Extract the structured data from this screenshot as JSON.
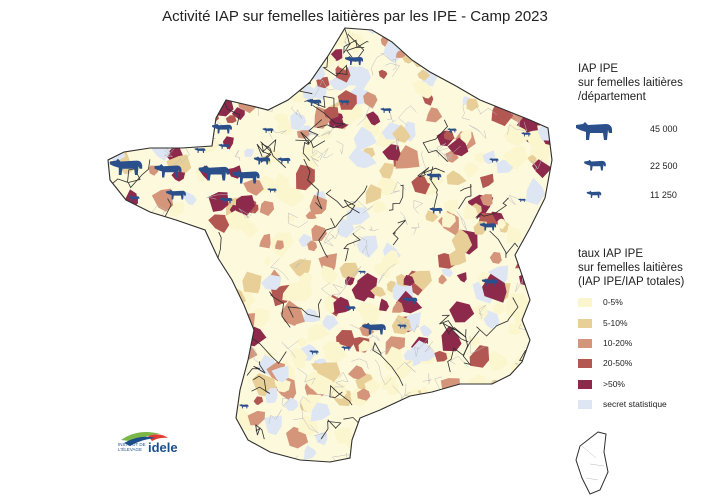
{
  "title": "Activité IAP sur femelles laitières par les IPE - Camp 2023",
  "size_legend": {
    "title_lines": [
      "IAP IPE",
      "sur femelles laitières",
      "/département"
    ],
    "items": [
      {
        "label": "45 000",
        "value": 45000
      },
      {
        "label": "22 500",
        "value": 22500
      },
      {
        "label": "11 250",
        "value": 11250
      }
    ]
  },
  "rate_legend": {
    "title_lines": [
      "taux IAP IPE",
      "sur femelles laitières",
      "(IAP IPE/IAP totales)"
    ],
    "classes": [
      {
        "label": "0-5%",
        "color": "#fcf6cf"
      },
      {
        "label": "5-10%",
        "color": "#e8cf98"
      },
      {
        "label": "10-20%",
        "color": "#d4957a"
      },
      {
        "label": "20-50%",
        "color": "#b35752"
      },
      {
        "label": ">50%",
        "color": "#8d2a4c"
      },
      {
        "label": "secret statistique",
        "color": "#dde6f2"
      }
    ]
  },
  "colors": {
    "cow": "#2b4f8a",
    "border_dept": "#2e2e2e",
    "border_commune": "#bcbcbc"
  },
  "logo": {
    "brand": "idele",
    "small_text": "INSTITUT DE L'ÉLEVAGE"
  }
}
